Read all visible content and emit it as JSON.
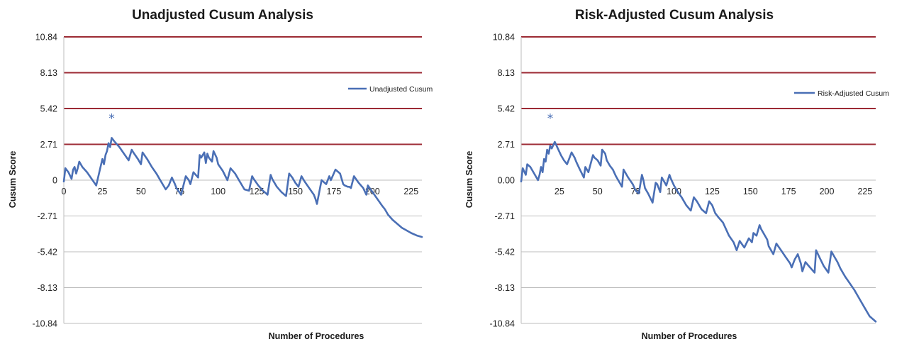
{
  "chart_data": [
    {
      "type": "line",
      "title": "Unadjusted Cusum Analysis",
      "xlabel": "Number of Procedures",
      "ylabel": "Cusum Score",
      "ylim": [
        -10.84,
        10.84
      ],
      "xlim": [
        0,
        232
      ],
      "y_ticks": [
        "10.84",
        "8.13",
        "5.42",
        "2.71",
        "0",
        "-2.71",
        "-5.42",
        "-8.13",
        "-10.84"
      ],
      "y_tick_values": [
        10.84,
        8.13,
        5.42,
        2.71,
        0,
        -2.71,
        -5.42,
        -8.13,
        -10.84
      ],
      "x_ticks": [
        "0",
        "25",
        "50",
        "75",
        "100",
        "125",
        "150",
        "175",
        "200",
        "225"
      ],
      "x_tick_values": [
        0,
        25,
        50,
        75,
        100,
        125,
        150,
        175,
        200,
        225
      ],
      "control_limits": [
        10.84,
        8.13,
        5.42,
        2.71
      ],
      "annotation": "*",
      "annotation_at": [
        31,
        4.7
      ],
      "grid": "horizontal",
      "legend_position": "right",
      "series": [
        {
          "name": "Unadjusted Cusum",
          "color": "#4a6fb5",
          "x": [
            0,
            1,
            3,
            5,
            6,
            7,
            8,
            9,
            10,
            12,
            15,
            18,
            21,
            24,
            25,
            26,
            27,
            28,
            29,
            30,
            31,
            33,
            36,
            39,
            42,
            44,
            45,
            48,
            50,
            51,
            54,
            57,
            60,
            63,
            66,
            68,
            70,
            72,
            73,
            76,
            79,
            81,
            82,
            84,
            87,
            88,
            89,
            91,
            92,
            93,
            94,
            96,
            97,
            99,
            100,
            103,
            106,
            108,
            111,
            114,
            117,
            120,
            122,
            123,
            126,
            129,
            132,
            134,
            135,
            136,
            138,
            141,
            144,
            146,
            148,
            150,
            152,
            154,
            156,
            159,
            162,
            163,
            164,
            167,
            170,
            172,
            173,
            176,
            179,
            180,
            181,
            182,
            184,
            185,
            186,
            188,
            191,
            194,
            196,
            197,
            200,
            203,
            206,
            208,
            210,
            213,
            216,
            219,
            222,
            225,
            229,
            232
          ],
          "y": [
            -0.1,
            0.9,
            0.6,
            0.1,
            0.8,
            1.0,
            0.5,
            0.9,
            1.4,
            1.0,
            0.6,
            0.1,
            -0.4,
            1.1,
            1.6,
            1.2,
            1.9,
            2.2,
            2.8,
            2.5,
            3.2,
            2.9,
            2.5,
            2.0,
            1.5,
            2.3,
            2.1,
            1.6,
            1.2,
            2.1,
            1.6,
            1.0,
            0.5,
            -0.1,
            -0.7,
            -0.4,
            0.2,
            -0.3,
            -0.6,
            -1.1,
            0.3,
            0.0,
            -0.3,
            0.6,
            0.2,
            1.9,
            1.7,
            2.1,
            1.3,
            2.0,
            1.7,
            1.4,
            2.2,
            1.7,
            1.2,
            0.7,
            0.0,
            0.9,
            0.5,
            -0.1,
            -0.7,
            -0.8,
            0.3,
            0.1,
            -0.4,
            -0.8,
            -1.1,
            0.4,
            0.1,
            -0.1,
            -0.5,
            -0.9,
            -1.2,
            0.5,
            0.2,
            -0.2,
            -0.5,
            0.3,
            -0.1,
            -0.6,
            -1.1,
            -1.4,
            -1.8,
            0.0,
            -0.3,
            0.3,
            0.0,
            0.8,
            0.5,
            0.1,
            -0.3,
            -0.4,
            -0.5,
            -0.5,
            -0.6,
            0.3,
            -0.2,
            -0.6,
            -1.1,
            -0.4,
            -0.9,
            -1.4,
            -1.9,
            -2.2,
            -2.6,
            -3.0,
            -3.3,
            -3.6,
            -3.8,
            -4.0,
            -4.2,
            -4.3
          ]
        }
      ]
    },
    {
      "type": "line",
      "title": "Risk-Adjusted Cusum Analysis",
      "xlabel": "Number of Procedures",
      "ylabel": "Cusum Score",
      "ylim": [
        -10.84,
        10.84
      ],
      "xlim": [
        0,
        232
      ],
      "y_ticks": [
        "10.84",
        "8.13",
        "5.42",
        "2.71",
        "0.00",
        "-2.71",
        "-5.42",
        "-8.13",
        "-10.84"
      ],
      "y_tick_values": [
        10.84,
        8.13,
        5.42,
        2.71,
        0,
        -2.71,
        -5.42,
        -8.13,
        -10.84
      ],
      "x_ticks": [
        "25",
        "50",
        "75",
        "100",
        "125",
        "150",
        "175",
        "200",
        "225"
      ],
      "x_tick_values": [
        25,
        50,
        75,
        100,
        125,
        150,
        175,
        200,
        225
      ],
      "control_limits": [
        10.84,
        8.13,
        5.42,
        2.71
      ],
      "annotation": "*",
      "annotation_at": [
        19,
        4.7
      ],
      "grid": "horizontal",
      "legend_position": "right",
      "series": [
        {
          "name": "Risk-Adjusted Cusum",
          "color": "#4a6fb5",
          "x": [
            0,
            1,
            3,
            4,
            6,
            9,
            11,
            12,
            13,
            14,
            15,
            16,
            17,
            18,
            19,
            20,
            22,
            24,
            26,
            28,
            30,
            33,
            35,
            36,
            38,
            41,
            42,
            44,
            47,
            48,
            50,
            52,
            53,
            55,
            56,
            58,
            60,
            62,
            64,
            66,
            67,
            70,
            73,
            75,
            77,
            79,
            80,
            81,
            83,
            86,
            88,
            89,
            91,
            92,
            94,
            95,
            97,
            98,
            100,
            102,
            105,
            108,
            111,
            113,
            115,
            118,
            121,
            123,
            125,
            127,
            129,
            132,
            134,
            136,
            139,
            141,
            143,
            146,
            149,
            151,
            152,
            154,
            156,
            157,
            159,
            161,
            162,
            163,
            165,
            167,
            170,
            173,
            176,
            177,
            179,
            181,
            183,
            184,
            186,
            189,
            192,
            193,
            195,
            198,
            201,
            203,
            205,
            207,
            209,
            212,
            215,
            218,
            220,
            222,
            225,
            228,
            232
          ],
          "y": [
            -0.1,
            0.9,
            0.4,
            1.2,
            1.0,
            0.4,
            0.0,
            0.4,
            1.0,
            0.6,
            1.6,
            1.4,
            2.3,
            2.0,
            2.6,
            2.4,
            2.9,
            2.4,
            1.9,
            1.5,
            1.2,
            2.1,
            1.7,
            1.4,
            0.9,
            0.2,
            1.0,
            0.6,
            1.9,
            1.7,
            1.5,
            1.1,
            2.3,
            2.0,
            1.5,
            1.1,
            0.8,
            0.3,
            -0.1,
            -0.5,
            0.8,
            0.2,
            -0.3,
            -0.8,
            -1.0,
            0.4,
            0.0,
            -0.6,
            -1.0,
            -1.7,
            -0.2,
            -0.3,
            -0.9,
            0.2,
            -0.2,
            -0.4,
            0.4,
            0.1,
            -0.4,
            -0.8,
            -1.3,
            -1.9,
            -2.3,
            -1.3,
            -1.6,
            -2.2,
            -2.5,
            -1.6,
            -1.9,
            -2.5,
            -2.8,
            -3.2,
            -3.7,
            -4.2,
            -4.7,
            -5.3,
            -4.6,
            -5.1,
            -4.4,
            -4.7,
            -4.0,
            -4.2,
            -3.4,
            -3.7,
            -4.1,
            -4.5,
            -5.0,
            -5.2,
            -5.6,
            -4.8,
            -5.3,
            -5.8,
            -6.3,
            -6.6,
            -6.0,
            -5.6,
            -6.3,
            -6.9,
            -6.2,
            -6.6,
            -7.0,
            -5.3,
            -5.8,
            -6.5,
            -7.0,
            -5.4,
            -5.8,
            -6.2,
            -6.7,
            -7.3,
            -7.8,
            -8.3,
            -8.7,
            -9.1,
            -9.7,
            -10.3,
            -10.7
          ]
        }
      ]
    }
  ]
}
